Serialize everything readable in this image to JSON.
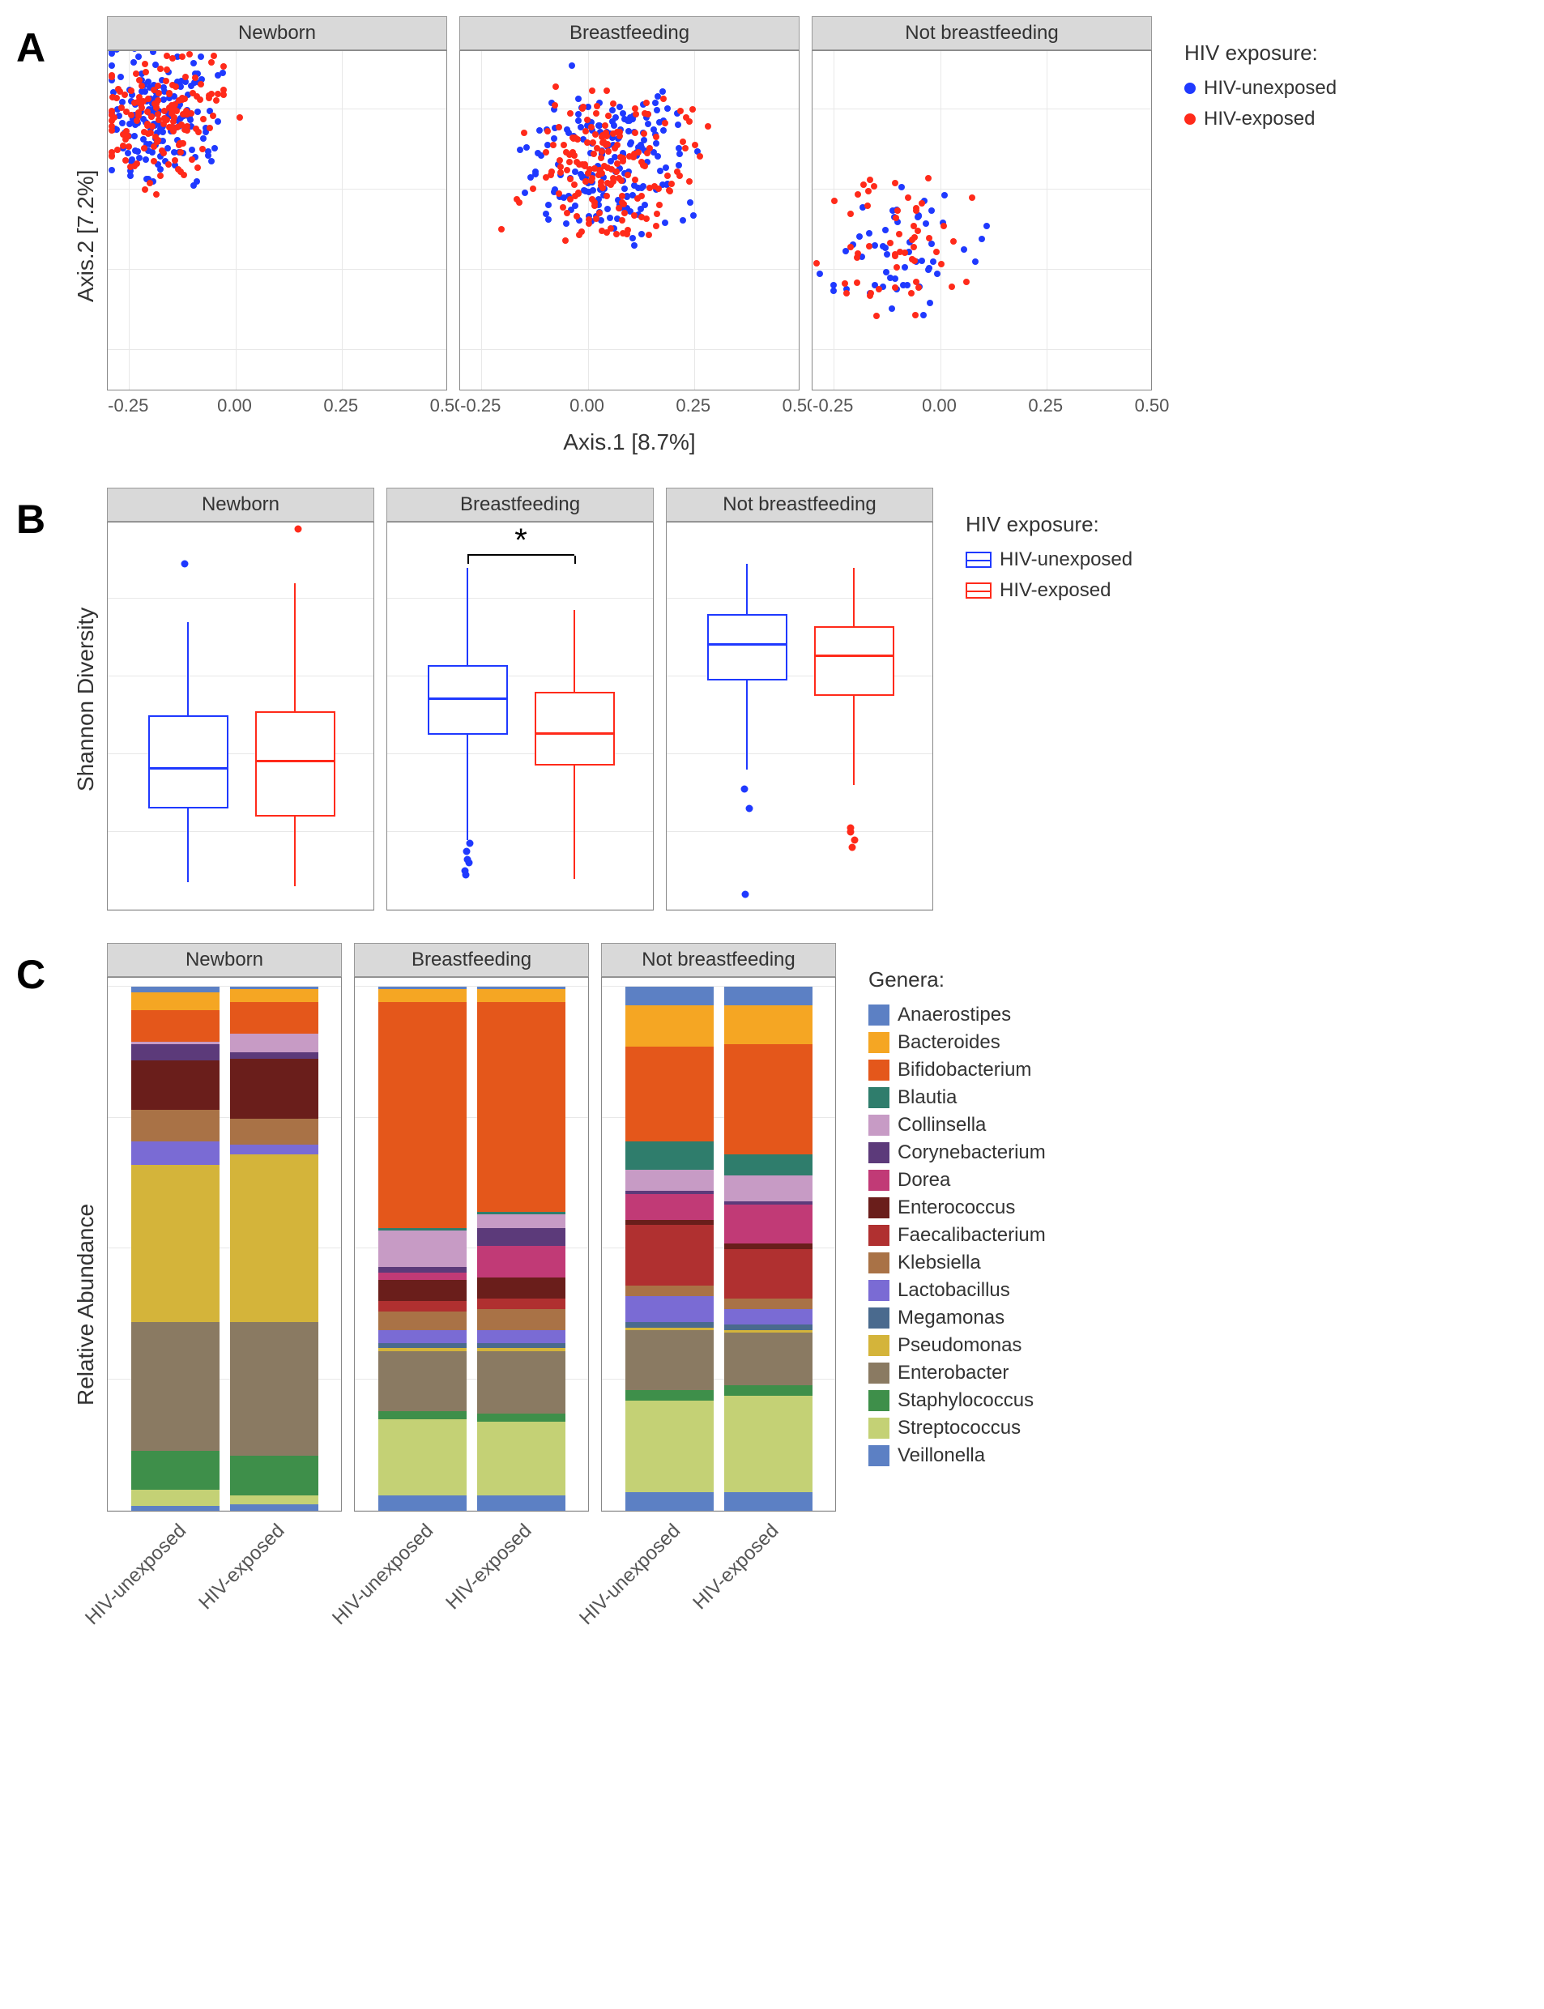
{
  "colors": {
    "unexposed": "#1f39ff",
    "exposed": "#ff2a1a",
    "facet_header": "#d9d9d9",
    "grid": "#e8e8e8",
    "border": "#888888",
    "text": "#333333"
  },
  "panelA": {
    "label": "A",
    "facets": [
      "Newborn",
      "Breastfeeding",
      "Not breastfeeding"
    ],
    "xlabel": "Axis.1   [8.7%]",
    "ylabel": "Axis.2   [7.2%]",
    "xlim": [
      -0.3,
      0.5
    ],
    "ylim": [
      -0.5,
      0.35
    ],
    "xticks": [
      -0.25,
      0.0,
      0.25,
      0.5
    ],
    "yticks": [
      -0.4,
      -0.2,
      0.0,
      0.2
    ],
    "legend_title": "HIV exposure:",
    "legend_items": [
      {
        "label": "HIV-unexposed",
        "color": "#1f39ff"
      },
      {
        "label": "HIV-exposed",
        "color": "#ff2a1a"
      }
    ],
    "point_counts": {
      "Newborn": {
        "unexposed": 160,
        "exposed": 160,
        "spread_x": [
          -0.28,
          0.3
        ],
        "spread_y": [
          -0.35,
          0.3
        ],
        "cluster": [
          -0.18,
          0.18
        ]
      },
      "Breastfeeding": {
        "unexposed": 180,
        "exposed": 180,
        "spread_x": [
          -0.28,
          0.5
        ],
        "spread_y": [
          -0.45,
          0.3
        ],
        "cluster": [
          0.05,
          0.05
        ]
      },
      "Not breastfeeding": {
        "unexposed": 55,
        "exposed": 55,
        "spread_x": [
          -0.25,
          0.45
        ],
        "spread_y": [
          -0.45,
          0.28
        ],
        "cluster": [
          -0.1,
          -0.15
        ]
      }
    }
  },
  "panelB": {
    "label": "B",
    "facets": [
      "Newborn",
      "Breastfeeding",
      "Not breastfeeding"
    ],
    "ylabel": "Shannon Diversity",
    "ylim": [
      0,
      5
    ],
    "yticks": [
      0,
      1,
      2,
      3,
      4,
      5
    ],
    "legend_title": "HIV exposure:",
    "legend_items": [
      {
        "label": "HIV-unexposed",
        "color": "#1f39ff"
      },
      {
        "label": "HIV-exposed",
        "color": "#ff2a1a"
      }
    ],
    "boxes": {
      "Newborn": [
        {
          "group": "unexposed",
          "q1": 1.3,
          "median": 1.8,
          "q3": 2.5,
          "wlow": 0.35,
          "whigh": 3.7,
          "outliers": [
            4.45
          ]
        },
        {
          "group": "exposed",
          "q1": 1.2,
          "median": 1.9,
          "q3": 2.55,
          "wlow": 0.3,
          "whigh": 4.2,
          "outliers": [
            4.9
          ]
        }
      ],
      "Breastfeeding": [
        {
          "group": "unexposed",
          "q1": 2.25,
          "median": 2.7,
          "q3": 3.15,
          "wlow": 0.9,
          "whigh": 4.4,
          "outliers": [
            0.45,
            0.5,
            0.6,
            0.65,
            0.75,
            0.85
          ]
        },
        {
          "group": "exposed",
          "q1": 1.85,
          "median": 2.25,
          "q3": 2.8,
          "wlow": 0.4,
          "whigh": 3.85,
          "outliers": []
        }
      ],
      "Not breastfeeding": [
        {
          "group": "unexposed",
          "q1": 2.95,
          "median": 3.4,
          "q3": 3.8,
          "wlow": 1.8,
          "whigh": 4.45,
          "outliers": [
            0.2,
            1.3,
            1.55
          ]
        },
        {
          "group": "exposed",
          "q1": 2.75,
          "median": 3.25,
          "q3": 3.65,
          "wlow": 1.6,
          "whigh": 4.4,
          "outliers": [
            0.8,
            0.9,
            1.0,
            1.05
          ]
        }
      ]
    },
    "significance": {
      "facet": "Breastfeeding",
      "y": 4.55,
      "label": "*"
    }
  },
  "panelC": {
    "label": "C",
    "facets": [
      "Newborn",
      "Breastfeeding",
      "Not breastfeeding"
    ],
    "ylabel": "Relative Abundance",
    "ylim": [
      0,
      1.02
    ],
    "yticks": [
      0.0,
      0.25,
      0.5,
      0.75,
      1.0
    ],
    "xticklabels": [
      "HIV-unexposed",
      "HIV-exposed"
    ],
    "legend_title": "Genera:",
    "genera": [
      {
        "name": "Anaerostipes",
        "color": "#5c80c4"
      },
      {
        "name": "Bacteroides",
        "color": "#f5a623"
      },
      {
        "name": "Bifidobacterium",
        "color": "#e4571b"
      },
      {
        "name": "Blautia",
        "color": "#2f7d6c"
      },
      {
        "name": "Collinsella",
        "color": "#c79bc5"
      },
      {
        "name": "Corynebacterium",
        "color": "#5c3a7a"
      },
      {
        "name": "Dorea",
        "color": "#c13a76"
      },
      {
        "name": "Enterococcus",
        "color": "#6a1e1b"
      },
      {
        "name": "Faecalibacterium",
        "color": "#b03030"
      },
      {
        "name": "Klebsiella",
        "color": "#a97246"
      },
      {
        "name": "Lactobacillus",
        "color": "#7a6bd4"
      },
      {
        "name": "Megamonas",
        "color": "#4a6a8e"
      },
      {
        "name": "Pseudomonas",
        "color": "#d4b43a"
      },
      {
        "name": "Enterobacter",
        "color": "#8a7a62"
      },
      {
        "name": "Staphylococcus",
        "color": "#3e8f4a"
      },
      {
        "name": "Streptococcus",
        "color": "#c4d175"
      },
      {
        "name": "Veillonella",
        "color": "#5c80c4"
      }
    ],
    "stacks": {
      "Newborn": {
        "HIV-unexposed": {
          "Veillonella": 0.01,
          "Streptococcus": 0.03,
          "Staphylococcus": 0.075,
          "Enterobacter": 0.245,
          "Pseudomonas": 0.3,
          "Lactobacillus": 0.045,
          "Klebsiella": 0.06,
          "Enterococcus": 0.095,
          "Corynebacterium": 0.03,
          "Collinsella": 0.005,
          "Bifidobacterium": 0.06,
          "Bacteroides": 0.035,
          "Anaerostipes": 0.01
        },
        "HIV-exposed": {
          "Veillonella": 0.012,
          "Streptococcus": 0.018,
          "Staphylococcus": 0.075,
          "Enterobacter": 0.255,
          "Pseudomonas": 0.32,
          "Lactobacillus": 0.018,
          "Klebsiella": 0.05,
          "Enterococcus": 0.115,
          "Corynebacterium": 0.012,
          "Collinsella": 0.035,
          "Bifidobacterium": 0.06,
          "Bacteroides": 0.025,
          "Anaerostipes": 0.005
        }
      },
      "Breastfeeding": {
        "HIV-unexposed": {
          "Veillonella": 0.03,
          "Streptococcus": 0.145,
          "Staphylococcus": 0.015,
          "Enterobacter": 0.115,
          "Pseudomonas": 0.005,
          "Megamonas": 0.01,
          "Lactobacillus": 0.025,
          "Klebsiella": 0.035,
          "Faecalibacterium": 0.02,
          "Enterococcus": 0.04,
          "Dorea": 0.015,
          "Corynebacterium": 0.01,
          "Collinsella": 0.07,
          "Blautia": 0.005,
          "Bifidobacterium": 0.43,
          "Bacteroides": 0.025,
          "Anaerostipes": 0.005
        },
        "HIV-exposed": {
          "Veillonella": 0.03,
          "Streptococcus": 0.14,
          "Staphylococcus": 0.015,
          "Enterobacter": 0.12,
          "Pseudomonas": 0.005,
          "Megamonas": 0.01,
          "Lactobacillus": 0.025,
          "Klebsiella": 0.04,
          "Faecalibacterium": 0.02,
          "Enterococcus": 0.04,
          "Dorea": 0.06,
          "Corynebacterium": 0.035,
          "Collinsella": 0.025,
          "Blautia": 0.005,
          "Bifidobacterium": 0.4,
          "Bacteroides": 0.025,
          "Anaerostipes": 0.005
        }
      },
      "Not breastfeeding": {
        "HIV-unexposed": {
          "Veillonella": 0.035,
          "Streptococcus": 0.175,
          "Staphylococcus": 0.02,
          "Enterobacter": 0.115,
          "Pseudomonas": 0.005,
          "Megamonas": 0.01,
          "Lactobacillus": 0.05,
          "Klebsiella": 0.02,
          "Faecalibacterium": 0.115,
          "Enterococcus": 0.01,
          "Dorea": 0.05,
          "Corynebacterium": 0.005,
          "Collinsella": 0.04,
          "Blautia": 0.055,
          "Bifidobacterium": 0.18,
          "Bacteroides": 0.08,
          "Anaerostipes": 0.035
        },
        "HIV-exposed": {
          "Veillonella": 0.035,
          "Streptococcus": 0.185,
          "Staphylococcus": 0.02,
          "Enterobacter": 0.1,
          "Pseudomonas": 0.005,
          "Megamonas": 0.01,
          "Lactobacillus": 0.03,
          "Klebsiella": 0.02,
          "Faecalibacterium": 0.095,
          "Enterococcus": 0.01,
          "Dorea": 0.075,
          "Corynebacterium": 0.005,
          "Collinsella": 0.05,
          "Blautia": 0.04,
          "Bifidobacterium": 0.21,
          "Bacteroides": 0.075,
          "Anaerostipes": 0.035
        }
      }
    }
  }
}
